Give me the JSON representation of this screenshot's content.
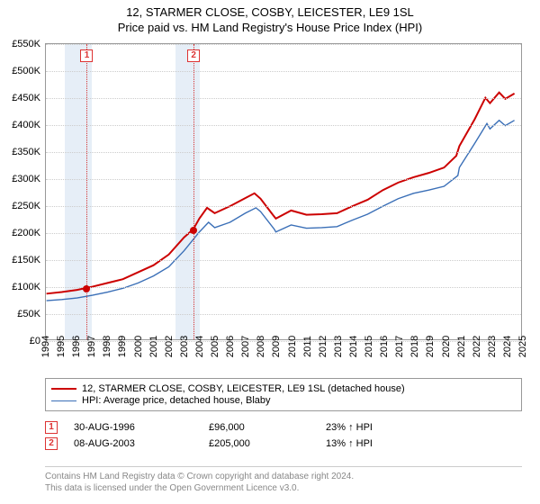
{
  "title_line1": "12, STARMER CLOSE, COSBY, LEICESTER, LE9 1SL",
  "title_line2": "Price paid vs. HM Land Registry's House Price Index (HPI)",
  "chart": {
    "type": "line",
    "x_years": [
      1994,
      1995,
      1996,
      1997,
      1998,
      1999,
      2000,
      2001,
      2002,
      2003,
      2004,
      2005,
      2006,
      2007,
      2008,
      2009,
      2010,
      2011,
      2012,
      2013,
      2014,
      2015,
      2016,
      2017,
      2018,
      2019,
      2020,
      2021,
      2022,
      2023,
      2024,
      2025
    ],
    "y_ticks": [
      0,
      50000,
      100000,
      150000,
      200000,
      250000,
      300000,
      350000,
      400000,
      450000,
      500000,
      550000
    ],
    "y_tick_labels": [
      "£0",
      "£50K",
      "£100K",
      "£150K",
      "£200K",
      "£250K",
      "£300K",
      "£350K",
      "£400K",
      "£450K",
      "£500K",
      "£550K"
    ],
    "ylim": [
      0,
      550000
    ],
    "xlim": [
      1994,
      2025
    ],
    "grid_color": "#cccccc",
    "background_color": "#ffffff",
    "band_color": "#e6eef7",
    "vline_color": "#d33333",
    "bands": [
      {
        "from": 1995.2,
        "to": 1997.0
      },
      {
        "from": 2002.4,
        "to": 2004.0
      }
    ],
    "vlines": [
      1996.66,
      2003.6
    ],
    "markers": [
      {
        "n": "1",
        "year": 1996.66,
        "value": 96000
      },
      {
        "n": "2",
        "year": 2003.6,
        "value": 205000
      }
    ],
    "series": [
      {
        "name": "property",
        "label": "12, STARMER CLOSE, COSBY, LEICESTER, LE9 1SL (detached house)",
        "color": "#cc0000",
        "width": 2,
        "points": [
          [
            1994,
            85000
          ],
          [
            1995,
            88000
          ],
          [
            1996,
            92000
          ],
          [
            1996.66,
            96000
          ],
          [
            1997,
            98000
          ],
          [
            1998,
            105000
          ],
          [
            1999,
            112000
          ],
          [
            2000,
            125000
          ],
          [
            2001,
            138000
          ],
          [
            2002,
            158000
          ],
          [
            2003,
            190000
          ],
          [
            2003.6,
            205000
          ],
          [
            2004,
            225000
          ],
          [
            2004.5,
            245000
          ],
          [
            2005,
            235000
          ],
          [
            2006,
            248000
          ],
          [
            2007,
            263000
          ],
          [
            2007.6,
            272000
          ],
          [
            2008,
            262000
          ],
          [
            2008.8,
            232000
          ],
          [
            2009,
            225000
          ],
          [
            2010,
            240000
          ],
          [
            2011,
            232000
          ],
          [
            2012,
            233000
          ],
          [
            2013,
            235000
          ],
          [
            2014,
            248000
          ],
          [
            2015,
            260000
          ],
          [
            2016,
            278000
          ],
          [
            2017,
            292000
          ],
          [
            2018,
            302000
          ],
          [
            2019,
            310000
          ],
          [
            2020,
            320000
          ],
          [
            2020.8,
            342000
          ],
          [
            2021,
            360000
          ],
          [
            2022,
            410000
          ],
          [
            2022.7,
            450000
          ],
          [
            2023,
            440000
          ],
          [
            2023.6,
            460000
          ],
          [
            2024,
            448000
          ],
          [
            2024.6,
            458000
          ]
        ]
      },
      {
        "name": "hpi",
        "label": "HPI: Average price, detached house, Blaby",
        "color": "#3a6fb7",
        "width": 1.4,
        "points": [
          [
            1994,
            72000
          ],
          [
            1995,
            74000
          ],
          [
            1996,
            77000
          ],
          [
            1997,
            82000
          ],
          [
            1998,
            88000
          ],
          [
            1999,
            95000
          ],
          [
            2000,
            105000
          ],
          [
            2001,
            118000
          ],
          [
            2002,
            135000
          ],
          [
            2003,
            165000
          ],
          [
            2004,
            200000
          ],
          [
            2004.6,
            218000
          ],
          [
            2005,
            208000
          ],
          [
            2006,
            218000
          ],
          [
            2007,
            235000
          ],
          [
            2007.7,
            245000
          ],
          [
            2008,
            238000
          ],
          [
            2008.9,
            205000
          ],
          [
            2009,
            200000
          ],
          [
            2010,
            213000
          ],
          [
            2011,
            207000
          ],
          [
            2012,
            208000
          ],
          [
            2013,
            210000
          ],
          [
            2014,
            222000
          ],
          [
            2015,
            233000
          ],
          [
            2016,
            248000
          ],
          [
            2017,
            262000
          ],
          [
            2018,
            272000
          ],
          [
            2019,
            278000
          ],
          [
            2020,
            285000
          ],
          [
            2020.9,
            305000
          ],
          [
            2021,
            320000
          ],
          [
            2022,
            365000
          ],
          [
            2022.8,
            402000
          ],
          [
            2023,
            392000
          ],
          [
            2023.6,
            408000
          ],
          [
            2024,
            398000
          ],
          [
            2024.6,
            408000
          ]
        ]
      }
    ]
  },
  "legend": {
    "border_color": "#999999",
    "rows": [
      {
        "color": "#cc0000",
        "width": 2,
        "label": "12, STARMER CLOSE, COSBY, LEICESTER, LE9 1SL (detached house)"
      },
      {
        "color": "#3a6fb7",
        "width": 1.4,
        "label": "HPI: Average price, detached house, Blaby"
      }
    ]
  },
  "events": [
    {
      "n": "1",
      "date": "30-AUG-1996",
      "price": "£96,000",
      "delta": "23% ↑ HPI"
    },
    {
      "n": "2",
      "date": "08-AUG-2003",
      "price": "£205,000",
      "delta": "13% ↑ HPI"
    }
  ],
  "footer_line1": "Contains HM Land Registry data © Crown copyright and database right 2024.",
  "footer_line2": "This data is licensed under the Open Government Licence v3.0."
}
